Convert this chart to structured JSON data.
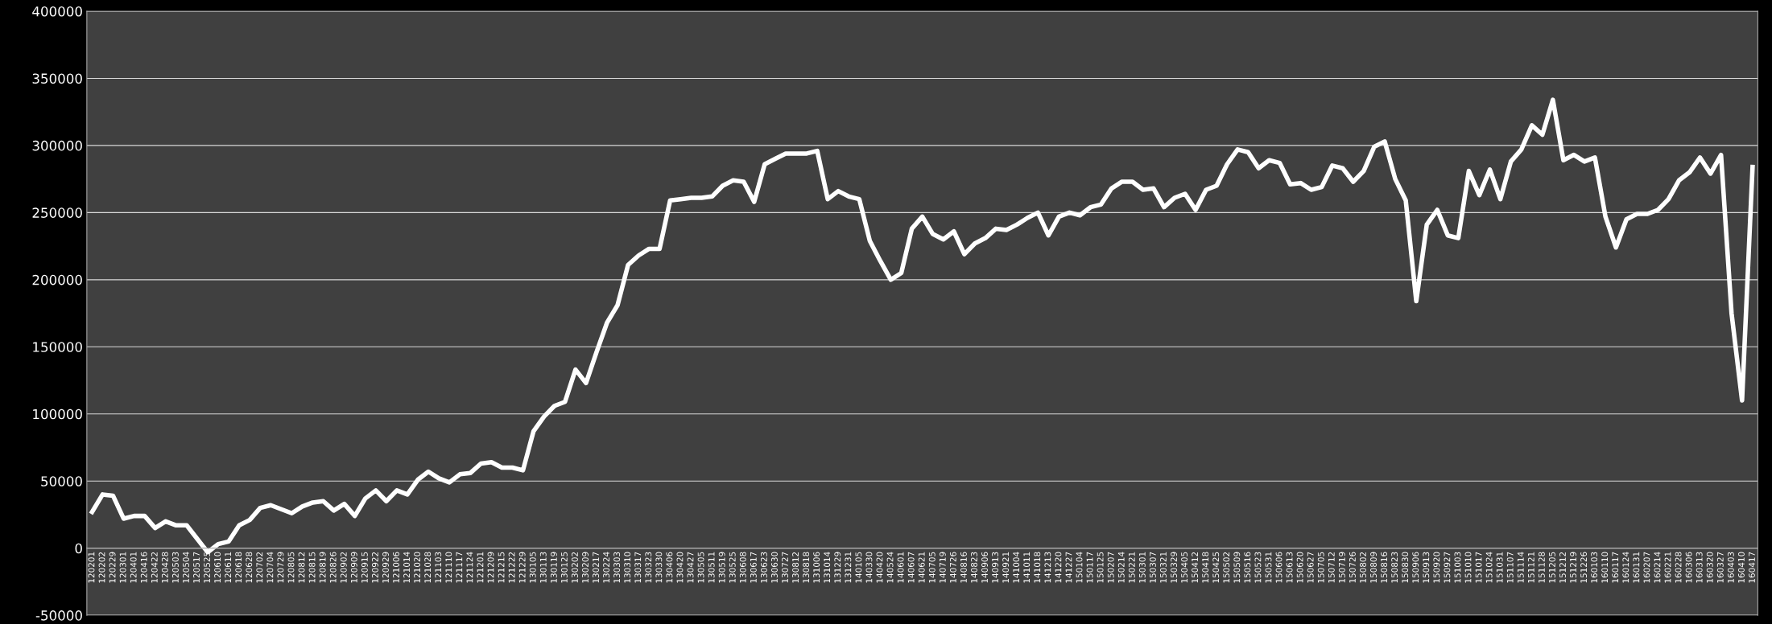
{
  "chart_data": {
    "type": "line",
    "categories": [
      "120201",
      "120202",
      "120229",
      "120301",
      "120401",
      "120416",
      "120422",
      "120428",
      "120503",
      "120504",
      "120517",
      "120525",
      "120610",
      "120611",
      "120618",
      "120628",
      "120702",
      "120704",
      "120729",
      "120805",
      "120812",
      "120815",
      "120819",
      "120826",
      "120902",
      "120909",
      "120915",
      "120922",
      "120929",
      "121006",
      "121014",
      "121020",
      "121028",
      "121103",
      "121110",
      "121117",
      "121124",
      "121201",
      "121209",
      "121215",
      "121222",
      "121229",
      "130105",
      "130113",
      "130119",
      "130125",
      "130202",
      "130209",
      "130217",
      "130224",
      "130303",
      "130310",
      "130317",
      "130323",
      "130330",
      "130406",
      "130420",
      "130427",
      "130505",
      "130511",
      "130519",
      "130525",
      "130608",
      "130617",
      "130623",
      "130630",
      "130727",
      "130812",
      "130818",
      "131006",
      "131014",
      "131229",
      "131231",
      "140105",
      "140330",
      "140420",
      "140524",
      "140601",
      "140607",
      "140621",
      "140705",
      "140719",
      "140726",
      "140816",
      "140823",
      "140906",
      "140913",
      "140921",
      "141004",
      "141011",
      "141018",
      "141213",
      "141220",
      "141227",
      "150104",
      "150117",
      "150125",
      "150207",
      "150214",
      "150221",
      "150301",
      "150307",
      "150321",
      "150329",
      "150405",
      "150412",
      "150418",
      "150425",
      "150502",
      "150509",
      "150516",
      "150523",
      "150531",
      "150606",
      "150613",
      "150620",
      "150627",
      "150705",
      "150712",
      "150719",
      "150726",
      "150802",
      "150809",
      "150816",
      "150823",
      "150830",
      "150906",
      "150913",
      "150920",
      "150927",
      "151003",
      "151010",
      "151017",
      "151024",
      "151031",
      "151107",
      "151114",
      "151121",
      "151128",
      "151205",
      "151212",
      "151219",
      "151226",
      "160103",
      "160110",
      "160117",
      "160124",
      "160131",
      "160207",
      "160214",
      "160221",
      "160228",
      "160306",
      "160313",
      "160320",
      "160327",
      "160403",
      "160410",
      "160417"
    ],
    "series": [
      {
        "color": "#ffffff",
        "values": [
          27000,
          40000,
          39000,
          22000,
          24000,
          24000,
          15000,
          20000,
          17000,
          17000,
          7000,
          -3000,
          3000,
          5000,
          17000,
          21000,
          30000,
          32000,
          29000,
          26000,
          31000,
          34000,
          35000,
          28000,
          33000,
          24000,
          37000,
          43000,
          35000,
          43000,
          40000,
          51000,
          57000,
          52000,
          49000,
          55000,
          56000,
          63000,
          64000,
          60000,
          60000,
          58000,
          87000,
          98000,
          106000,
          109000,
          133000,
          123000,
          146000,
          168000,
          181000,
          211000,
          218000,
          223000,
          223000,
          259000,
          260000,
          261000,
          261000,
          262000,
          270000,
          274000,
          273000,
          258000,
          286000,
          290000,
          294000,
          294000,
          294000,
          296000,
          260000,
          266000,
          262000,
          260000,
          229000,
          214000,
          200000,
          205000,
          238000,
          247000,
          234000,
          230000,
          236000,
          219000,
          227000,
          231000,
          238000,
          237000,
          241000,
          246000,
          250000,
          233000,
          247000,
          250000,
          248000,
          254000,
          256000,
          268000,
          273000,
          273000,
          267000,
          268000,
          254000,
          261000,
          264000,
          252000,
          267000,
          270000,
          286000,
          297000,
          295000,
          283000,
          289000,
          287000,
          271000,
          272000,
          267000,
          269000,
          285000,
          283000,
          273000,
          281000,
          299000,
          303000,
          275000,
          259000,
          184000,
          241000,
          252000,
          233000,
          231000,
          281000,
          263000,
          282000,
          260000,
          288000,
          297000,
          315000,
          308000,
          334000,
          289000,
          293000,
          288000,
          291000,
          247000,
          224000,
          245000,
          249000,
          249000,
          252000,
          260000,
          274000,
          280000,
          291000,
          279000,
          293000,
          175000,
          110000,
          284000
        ]
      }
    ],
    "ylim": [
      -50000,
      400000
    ],
    "yticks": [
      -50000,
      0,
      50000,
      100000,
      150000,
      200000,
      250000,
      300000,
      350000,
      400000
    ],
    "grid": "y",
    "legend": false,
    "marker": "none",
    "line_style": "solid"
  }
}
